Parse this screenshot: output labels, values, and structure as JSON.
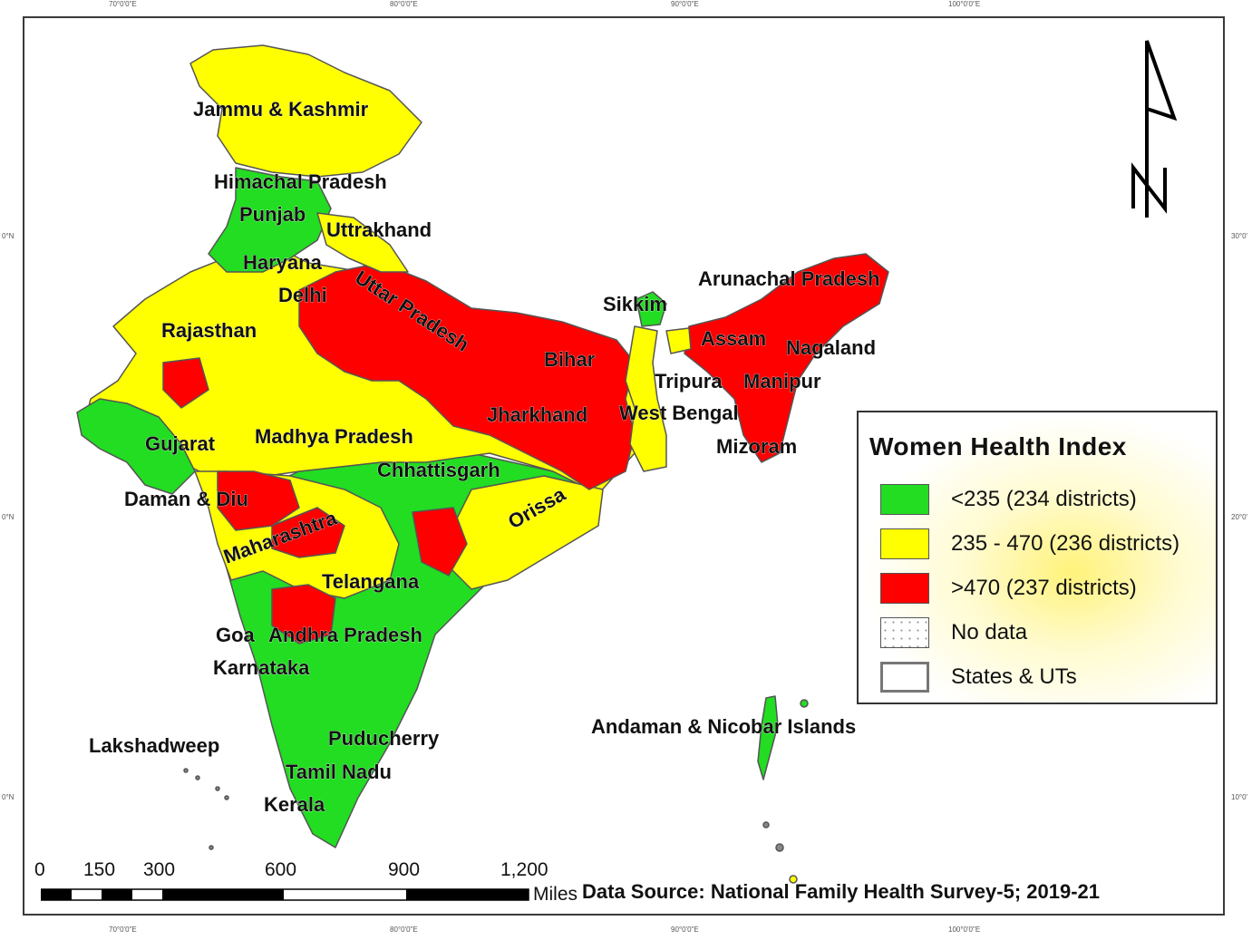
{
  "graticule": {
    "top": [
      "70°0'0\"E",
      "80°0'0\"E",
      "90°0'0\"E",
      "100°0'0\"E"
    ],
    "bottom": [
      "70°0'0\"E",
      "80°0'0\"E",
      "90°0'0\"E",
      "100°0'0\"E"
    ],
    "left": [
      "0°N",
      "0°N",
      "0°N"
    ],
    "right": [
      "30°0'",
      "20°0'",
      "10°0'"
    ]
  },
  "colors": {
    "low": "#22dd22",
    "mid": "#ffff00",
    "high": "#ff0000",
    "border": "#555555"
  },
  "labels": {
    "jammu_kashmir": "Jammu & Kashmir",
    "himachal": "Himachal Pradesh",
    "punjab": "Punjab",
    "uttrakhand": "Uttrakhand",
    "haryana": "Haryana",
    "delhi": "Delhi",
    "uttar_pradesh": "Uttar Pradesh",
    "rajasthan": "Rajasthan",
    "bihar": "Bihar",
    "sikkim": "Sikkim",
    "arunachal": "Arunachal Pradesh",
    "assam": "Assam",
    "nagaland": "Nagaland",
    "tripura": "Tripura",
    "manipur": "Manipur",
    "jharkhand": "Jharkhand",
    "west_bengal": "West Bengal",
    "mizoram": "Mizoram",
    "gujarat": "Gujarat",
    "madhya_pradesh": "Madhya Pradesh",
    "chhattisgarh": "Chhattisgarh",
    "daman_diu": "Daman & Diu",
    "maharashtra": "Maharashtra",
    "orissa": "Orissa",
    "telangana": "Telangana",
    "goa": "Goa",
    "andhra": "Andhra Pradesh",
    "karnataka": "Karnataka",
    "lakshadweep": "Lakshadweep",
    "puducherry": "Puducherry",
    "tamil_nadu": "Tamil Nadu",
    "kerala": "Kerala",
    "andaman": "Andaman & Nicobar Islands"
  },
  "legend": {
    "title": "Women Health Index",
    "items": [
      {
        "label": "<235 (234 districts)",
        "color": "#22dd22"
      },
      {
        "label": "235 - 470 (236 districts)",
        "color": "#ffff00"
      },
      {
        "label": ">470 (237 districts)",
        "color": "#ff0000"
      },
      {
        "label": "No data",
        "color": "#ffffff"
      },
      {
        "label": "States & UTs",
        "color": "#ffffff"
      }
    ]
  },
  "scale": {
    "ticks": [
      "0",
      "150",
      "300",
      "600",
      "900",
      "1,200"
    ],
    "unit": "Miles"
  },
  "source": "Data Source: National Family Health Survey-5; 2019-21"
}
